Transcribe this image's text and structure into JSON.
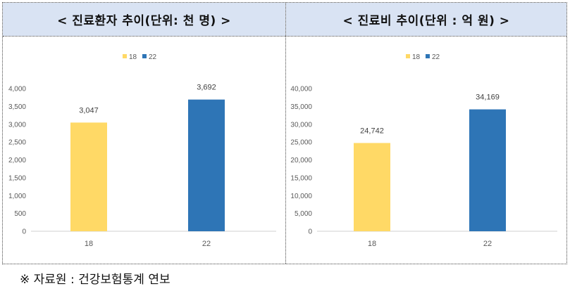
{
  "left_panel": {
    "title": "< 진료환자 추이(단위: 천 명) >"
  },
  "right_panel": {
    "title": "< 진료비 추이(단위 : 억 원) >"
  },
  "source_note": "※ 자료원 : 건강보험통계 연보",
  "colors": {
    "series_18": "#FFD966",
    "series_22": "#2E75B6",
    "header_bg": "#D9E3F3"
  },
  "chart_data": [
    {
      "type": "bar",
      "categories": [
        "18",
        "22"
      ],
      "series": [
        {
          "name": "18",
          "values": [
            3047,
            null
          ]
        },
        {
          "name": "22",
          "values": [
            null,
            3692
          ]
        }
      ],
      "data_labels": [
        "3,047",
        "3,692"
      ],
      "title": "< 진료환자 추이(단위: 천 명) >",
      "ylim": [
        0,
        4000
      ],
      "yticks": [
        "0",
        "500",
        "1,000",
        "1,500",
        "2,000",
        "2,500",
        "3,000",
        "3,500",
        "4,000"
      ],
      "grid": false,
      "legend": "top-center"
    },
    {
      "type": "bar",
      "categories": [
        "18",
        "22"
      ],
      "series": [
        {
          "name": "18",
          "values": [
            24742,
            null
          ]
        },
        {
          "name": "22",
          "values": [
            null,
            34169
          ]
        }
      ],
      "data_labels": [
        "24,742",
        "34,169"
      ],
      "title": "< 진료비 추이(단위 : 억 원) >",
      "ylim": [
        0,
        40000
      ],
      "yticks": [
        "0",
        "5,000",
        "10,000",
        "15,000",
        "20,000",
        "25,000",
        "30,000",
        "35,000",
        "40,000"
      ],
      "grid": false,
      "legend": "top-center"
    }
  ]
}
